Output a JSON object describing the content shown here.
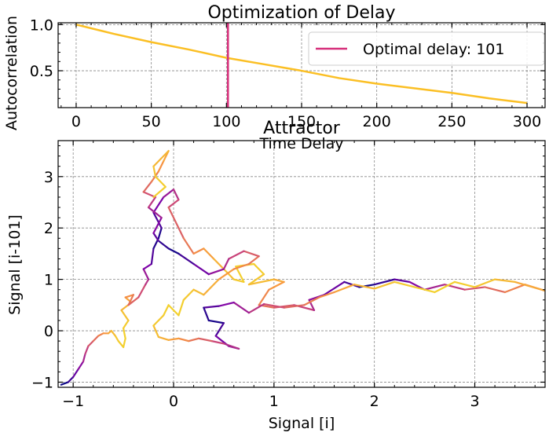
{
  "chart_data": [
    {
      "type": "line",
      "title": "Optimization of Delay",
      "xlabel": "Time Delay",
      "ylabel": "Autocorrelation",
      "xlim": [
        -12,
        312
      ],
      "ylim": [
        0.1,
        1.02
      ],
      "xticks": [
        0,
        50,
        100,
        150,
        200,
        250,
        300
      ],
      "yticks": [
        0.5,
        1.0
      ],
      "grid": true,
      "legend": {
        "placement": "top-right",
        "entries": [
          "Optimal delay: 101"
        ]
      },
      "series": [
        {
          "color": "#fbbf24",
          "x": [
            0,
            25,
            50,
            75,
            100,
            125,
            150,
            175,
            200,
            225,
            250,
            275,
            300
          ],
          "y": [
            1.0,
            0.9,
            0.81,
            0.73,
            0.64,
            0.57,
            0.5,
            0.42,
            0.36,
            0.31,
            0.26,
            0.2,
            0.15
          ]
        }
      ],
      "vline": {
        "x": 101,
        "name": "Optimal delay: 101",
        "color": "#d62f7a"
      }
    },
    {
      "type": "line",
      "title": "Attractor",
      "xlabel": "Signal [i]",
      "ylabel": "Signal [i-101]",
      "xlim": [
        -1.15,
        3.7
      ],
      "ylim": [
        -1.1,
        3.7
      ],
      "xticks": [
        -1,
        0,
        1,
        2,
        3
      ],
      "yticks": [
        -1,
        0,
        1,
        2,
        3
      ],
      "grid": true,
      "colormap": "plasma",
      "series": [
        {
          "x": [
            -1.12,
            -1.05,
            -1.0,
            -0.95,
            -0.9,
            -0.88,
            -0.85,
            -0.8,
            -0.75,
            -0.7,
            -0.65,
            -0.62,
            -0.58,
            -0.55,
            -0.5,
            -0.48,
            -0.5,
            -0.45,
            -0.52,
            -0.42,
            -0.48,
            -0.4,
            -0.45,
            -0.35,
            -0.28,
            -0.25,
            -0.3,
            -0.22,
            -0.2,
            -0.15,
            -0.12,
            -0.2,
            -0.1,
            0.0,
            0.05,
            -0.05,
            0.1,
            0.2,
            0.3,
            0.4,
            0.5,
            0.6,
            0.7,
            0.62,
            0.8,
            0.9,
            0.75,
            1.0,
            1.1,
            0.95,
            0.85,
            1.0,
            1.2,
            1.4,
            1.35,
            1.5,
            1.7,
            1.85,
            2.0,
            2.2,
            2.35,
            2.5,
            2.7,
            2.9,
            3.1,
            3.3,
            3.5,
            3.7,
            3.4,
            3.2,
            3.0,
            2.8,
            2.6,
            2.4,
            2.2,
            2.0,
            1.8,
            1.6,
            1.45,
            1.3,
            1.1,
            0.9,
            0.75,
            0.6,
            0.45,
            0.3,
            0.35,
            0.5,
            0.42,
            0.55,
            0.65,
            0.5,
            0.38,
            0.25,
            0.15,
            0.05,
            -0.05,
            -0.15,
            -0.2,
            -0.1,
            -0.05,
            0.05,
            0.1,
            0.2,
            0.3,
            0.45,
            0.6,
            0.75,
            0.85,
            0.7,
            0.55,
            0.5,
            0.35,
            0.2,
            0.05,
            -0.05,
            -0.15,
            -0.2,
            -0.12,
            -0.25,
            -0.18,
            -0.3,
            -0.22,
            -0.15,
            -0.1,
            -0.05,
            -0.2,
            -0.18,
            -0.08,
            -0.2
          ],
          "y": [
            -1.05,
            -1.0,
            -0.9,
            -0.75,
            -0.6,
            -0.45,
            -0.3,
            -0.2,
            -0.1,
            -0.05,
            -0.05,
            0.0,
            -0.1,
            -0.2,
            -0.32,
            -0.15,
            0.05,
            0.2,
            0.4,
            0.55,
            0.65,
            0.7,
            0.5,
            0.65,
            0.9,
            1.0,
            1.2,
            1.3,
            1.6,
            1.8,
            2.0,
            2.3,
            2.6,
            2.75,
            2.55,
            2.4,
            1.8,
            1.5,
            1.6,
            1.4,
            1.2,
            1.0,
            0.95,
            1.25,
            1.3,
            1.1,
            0.9,
            1.0,
            0.95,
            0.8,
            0.5,
            0.45,
            0.5,
            0.4,
            0.6,
            0.7,
            0.95,
            0.85,
            0.9,
            1.0,
            0.95,
            0.8,
            0.9,
            0.8,
            0.85,
            0.75,
            0.9,
            0.78,
            0.95,
            1.0,
            0.85,
            0.95,
            0.75,
            0.85,
            0.95,
            0.82,
            0.9,
            0.75,
            0.65,
            0.5,
            0.45,
            0.52,
            0.35,
            0.55,
            0.48,
            0.45,
            0.2,
            0.15,
            -0.1,
            -0.3,
            -0.35,
            -0.25,
            -0.2,
            -0.15,
            -0.2,
            -0.15,
            -0.18,
            -0.12,
            0.1,
            0.3,
            0.5,
            0.3,
            0.6,
            0.8,
            0.7,
            1.0,
            1.2,
            1.3,
            1.45,
            1.55,
            1.4,
            1.2,
            1.1,
            1.3,
            1.5,
            1.6,
            1.75,
            1.9,
            2.2,
            2.4,
            2.6,
            2.7,
            2.9,
            3.1,
            3.3,
            3.5,
            3.2,
            3.0,
            2.8,
            2.6
          ]
        }
      ]
    }
  ]
}
